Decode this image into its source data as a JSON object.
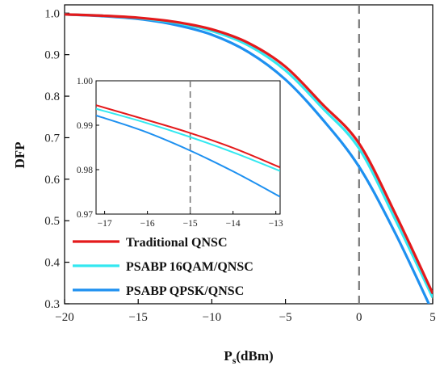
{
  "chart_data": {
    "type": "line",
    "xlabel_main": "P",
    "xlabel_sub": "s",
    "xlabel_unit": "(dBm)",
    "ylabel": "DFP",
    "xlim": [
      -20,
      5
    ],
    "ylim": [
      0.3,
      1.02
    ],
    "xticks": [
      -20,
      -15,
      -10,
      -5,
      0,
      5
    ],
    "yticks": [
      0.3,
      0.4,
      0.5,
      0.6,
      0.7,
      0.8,
      0.9,
      1.0
    ],
    "xtick_labels": [
      "−20",
      "−15",
      "−10",
      "−5",
      "0",
      "5"
    ],
    "ytick_labels": [
      "0.3",
      "0.4",
      "0.5",
      "0.6",
      "0.7",
      "0.8",
      "0.9",
      "1.0"
    ],
    "vline_x": 0,
    "legend_position": "bottom-left",
    "x": [
      -20,
      -17.5,
      -15,
      -12.5,
      -10,
      -7.5,
      -5,
      -2.5,
      0,
      2.5,
      5
    ],
    "series": [
      {
        "name": "Traditional QNSC",
        "color": "#e41a1c",
        "values": [
          0.997,
          0.994,
          0.989,
          0.979,
          0.961,
          0.928,
          0.871,
          0.781,
          0.686,
          0.514,
          0.325
        ]
      },
      {
        "name": "PSABP 16QAM/QNSC",
        "color": "#33e8f0",
        "values": [
          0.997,
          0.994,
          0.988,
          0.977,
          0.957,
          0.922,
          0.862,
          0.772,
          0.674,
          0.5,
          0.315
        ]
      },
      {
        "name": "PSABP QPSK/QNSC",
        "color": "#1e90f0",
        "values": [
          0.997,
          0.993,
          0.986,
          0.972,
          0.948,
          0.906,
          0.84,
          0.745,
          0.63,
          0.467,
          0.28
        ]
      }
    ],
    "inset": {
      "xlim": [
        -17.2,
        -12.9
      ],
      "ylim": [
        0.97,
        1.0
      ],
      "xticks": [
        -17,
        -16,
        -15,
        -14,
        -13
      ],
      "yticks": [
        0.97,
        0.98,
        0.99,
        1.0
      ],
      "xtick_labels": [
        "−17",
        "−16",
        "−15",
        "−14",
        "−13"
      ],
      "ytick_labels": [
        "0.97",
        "0.98",
        "0.99",
        "1.00"
      ],
      "vline_x": -15,
      "x": [
        -17.2,
        -16.125,
        -15.05,
        -13.975,
        -12.9
      ],
      "series": [
        {
          "name": "Traditional QNSC",
          "color": "#e41a1c",
          "values": [
            0.9945,
            0.9915,
            0.9884,
            0.9848,
            0.9805
          ]
        },
        {
          "name": "PSABP 16QAM/QNSC",
          "color": "#33e8f0",
          "values": [
            0.9937,
            0.9908,
            0.9875,
            0.9838,
            0.9797
          ]
        },
        {
          "name": "PSABP QPSK/QNSC",
          "color": "#1e90f0",
          "values": [
            0.9922,
            0.9888,
            0.9845,
            0.9795,
            0.9739
          ]
        }
      ]
    }
  }
}
